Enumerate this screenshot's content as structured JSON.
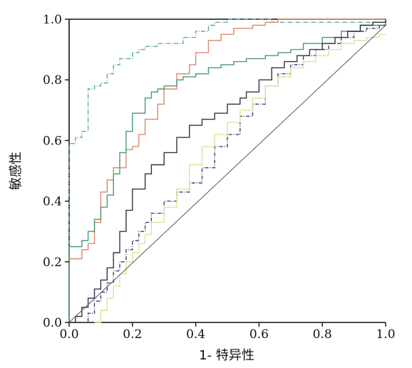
{
  "chart_data": {
    "type": "line",
    "title": "",
    "xlabel": "1- 特异性",
    "ylabel": "敏感性",
    "xlim": [
      0,
      1
    ],
    "ylim": [
      0,
      1
    ],
    "xticks": [
      "0.0",
      "0.2",
      "0.4",
      "0.6",
      "0.8",
      "1.0"
    ],
    "yticks": [
      "0.0",
      "0.2",
      "0.4",
      "0.6",
      "0.8",
      "1.0"
    ],
    "grid": false,
    "legend": "none",
    "series": [
      {
        "color": "#5aaa9a",
        "dash": "6 2 1 2",
        "x": [
          0,
          0,
          0.02,
          0.04,
          0.06,
          0.06,
          0.08,
          0.1,
          0.12,
          0.14,
          0.16,
          0.2,
          0.22,
          0.24,
          0.28,
          0.32,
          0.36,
          0.4,
          0.44,
          0.46,
          0.5,
          0.56,
          0.64,
          1.0
        ],
        "y": [
          0,
          0.59,
          0.61,
          0.63,
          0.66,
          0.77,
          0.78,
          0.79,
          0.82,
          0.85,
          0.87,
          0.89,
          0.9,
          0.91,
          0.92,
          0.92,
          0.94,
          0.96,
          0.98,
          0.99,
          1.0,
          1.0,
          0.99,
          1.0
        ]
      },
      {
        "color": "#d98a6a",
        "dash": "",
        "x": [
          0,
          0,
          0.04,
          0.06,
          0.08,
          0.1,
          0.12,
          0.14,
          0.18,
          0.2,
          0.22,
          0.24,
          0.28,
          0.3,
          0.34,
          0.38,
          0.4,
          0.44,
          0.48,
          0.52,
          0.58,
          0.62,
          0.66,
          1.0
        ],
        "y": [
          0,
          0.21,
          0.24,
          0.26,
          0.33,
          0.43,
          0.47,
          0.51,
          0.57,
          0.58,
          0.62,
          0.67,
          0.72,
          0.77,
          0.82,
          0.85,
          0.89,
          0.93,
          0.95,
          0.97,
          0.98,
          0.99,
          1.0,
          1.0
        ]
      },
      {
        "color": "#4a9a7a",
        "dash": "",
        "x": [
          0,
          0,
          0.04,
          0.06,
          0.08,
          0.1,
          0.12,
          0.14,
          0.16,
          0.18,
          0.2,
          0.24,
          0.26,
          0.28,
          0.3,
          0.34,
          0.36,
          0.4,
          0.44,
          0.48,
          0.52,
          0.56,
          0.62,
          0.66,
          0.7,
          0.74,
          0.8,
          0.86,
          0.92,
          1.0
        ],
        "y": [
          0,
          0.25,
          0.27,
          0.3,
          0.34,
          0.38,
          0.42,
          0.49,
          0.56,
          0.63,
          0.69,
          0.74,
          0.76,
          0.77,
          0.78,
          0.8,
          0.81,
          0.82,
          0.84,
          0.85,
          0.86,
          0.87,
          0.88,
          0.89,
          0.9,
          0.92,
          0.94,
          0.96,
          0.98,
          1.0
        ]
      },
      {
        "color": "#333344",
        "dash": "",
        "x": [
          0,
          0.02,
          0.04,
          0.06,
          0.08,
          0.1,
          0.12,
          0.14,
          0.16,
          0.18,
          0.2,
          0.24,
          0.26,
          0.3,
          0.34,
          0.38,
          0.42,
          0.46,
          0.5,
          0.54,
          0.56,
          0.6,
          0.64,
          0.68,
          0.72,
          0.76,
          0.8,
          0.84,
          0.88,
          0.92,
          0.96,
          1.0
        ],
        "y": [
          0,
          0.02,
          0.05,
          0.08,
          0.11,
          0.14,
          0.18,
          0.23,
          0.3,
          0.37,
          0.44,
          0.49,
          0.52,
          0.56,
          0.61,
          0.65,
          0.67,
          0.69,
          0.72,
          0.74,
          0.76,
          0.8,
          0.84,
          0.86,
          0.88,
          0.9,
          0.92,
          0.94,
          0.96,
          0.98,
          0.99,
          1.0
        ]
      },
      {
        "color": "#3a3a7a",
        "dash": "5 2 1 2",
        "x": [
          0.04,
          0.06,
          0.08,
          0.1,
          0.12,
          0.14,
          0.16,
          0.18,
          0.2,
          0.22,
          0.24,
          0.26,
          0.3,
          0.34,
          0.38,
          0.42,
          0.46,
          0.5,
          0.54,
          0.58,
          0.62,
          0.66,
          0.7,
          0.74,
          0.78,
          0.82,
          0.86,
          0.9,
          0.94,
          0.98,
          1.0
        ],
        "y": [
          0,
          0.03,
          0.07,
          0.1,
          0.13,
          0.17,
          0.2,
          0.24,
          0.27,
          0.3,
          0.33,
          0.36,
          0.4,
          0.43,
          0.46,
          0.51,
          0.58,
          0.62,
          0.68,
          0.72,
          0.78,
          0.82,
          0.85,
          0.88,
          0.9,
          0.92,
          0.94,
          0.96,
          0.97,
          0.98,
          0.99
        ]
      },
      {
        "color": "#dde39a",
        "dash": "",
        "x": [
          0.08,
          0.1,
          0.12,
          0.14,
          0.16,
          0.18,
          0.2,
          0.22,
          0.24,
          0.26,
          0.3,
          0.34,
          0.38,
          0.42,
          0.46,
          0.5,
          0.54,
          0.58,
          0.62,
          0.66,
          0.7,
          0.74,
          0.78,
          0.82,
          0.86,
          0.9,
          0.94,
          0.98,
          1.0
        ],
        "y": [
          0,
          0.04,
          0.08,
          0.12,
          0.16,
          0.2,
          0.23,
          0.26,
          0.29,
          0.33,
          0.38,
          0.44,
          0.52,
          0.58,
          0.62,
          0.66,
          0.7,
          0.74,
          0.78,
          0.81,
          0.84,
          0.86,
          0.88,
          0.9,
          0.92,
          0.93,
          0.94,
          0.95,
          0.95
        ]
      },
      {
        "color": "#555566",
        "dash": "",
        "x": [
          0,
          1.0
        ],
        "y": [
          0,
          0.98
        ]
      }
    ]
  }
}
